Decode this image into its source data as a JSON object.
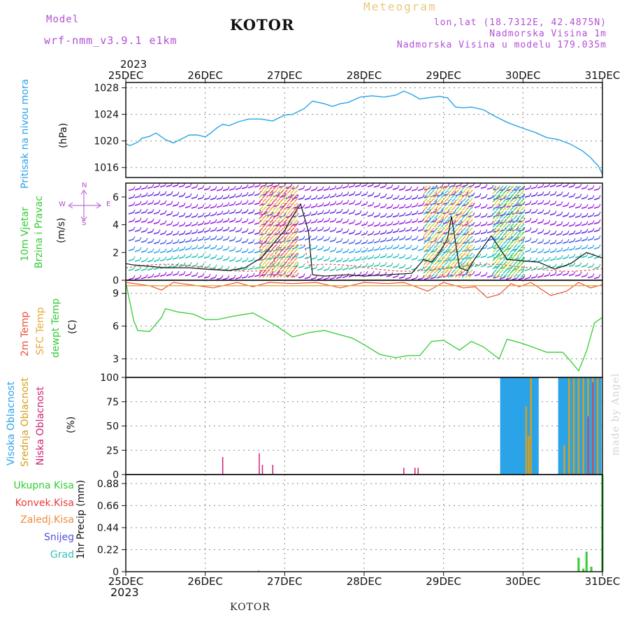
{
  "header": {
    "model_label": "Model",
    "model_name": "wrf-nmm_v3.9.1  e1km",
    "title": "KOTOR",
    "meteogram_label": "Meteogram",
    "lonlat": "lon,lat (18.7312E, 42.4875N)",
    "elevation": "Nadmorska Visina 1m",
    "model_elevation": "Nadmorska Visina u modelu 179.035m",
    "year": "2023",
    "watermark": "made by Angel",
    "footer_station": "KOTOR"
  },
  "colors": {
    "pressure": "#2aa3e8",
    "wind_black": "#111111",
    "gust_red": "#e05050",
    "temp2m": "#e8533a",
    "sfc_temp": "#e8a83a",
    "dewpoint": "#33cc33",
    "high_cloud": "#2aa3e8",
    "mid_cloud": "#d4a020",
    "low_cloud": "#cc2277",
    "precip": "#33cc33",
    "purple_text": "#b24fd6"
  },
  "axes": {
    "x_ticks": [
      "25DEC",
      "26DEC",
      "27DEC",
      "28DEC",
      "29DEC",
      "30DEC",
      "31DEC"
    ]
  },
  "panels": {
    "pressure": {
      "label": "Pritisak na nivou mora",
      "unit": "(hPa)",
      "ticks": [
        "1016",
        "1020",
        "1024",
        "1028"
      ]
    },
    "wind": {
      "label1": "10m Vjetar",
      "label2": "Brzina i Pravac",
      "unit": "(m/s)",
      "ticks": [
        "0",
        "2",
        "4",
        "6"
      ],
      "compass": {
        "n": "N",
        "s": "S",
        "w": "W",
        "e": "E"
      }
    },
    "temperature": {
      "label1": "2m Temp",
      "label2": "SFC Temp",
      "label3": "dewpt Temp",
      "unit": "(C)",
      "ticks": [
        "3",
        "6",
        "9"
      ]
    },
    "clouds": {
      "label1": "Visoka Oblacnost",
      "label2": "Srednja Oblacnost",
      "label3": "Niska Oblacnost",
      "unit": "(%)",
      "ticks": [
        "0",
        "25",
        "50",
        "75",
        "100"
      ]
    },
    "precip": {
      "legend": [
        "Ukupna Kisa",
        "Konvek.Kisa",
        "Zaledj.Kisa",
        "Snijeg",
        "Grad"
      ],
      "legend_colors": [
        "#33cc33",
        "#e83a3a",
        "#f08a3a",
        "#5050e0",
        "#33c0c0"
      ],
      "unit": "1hr Precip (mm)",
      "ticks": [
        "0",
        "0.22",
        "0.44",
        "0.66",
        "0.88"
      ]
    }
  },
  "chart_data": [
    {
      "type": "line",
      "title": "Pritisak na nivou mora",
      "ylabel": "(hPa)",
      "xlim": [
        0,
        6
      ],
      "ylim": [
        1014.5,
        1028.8
      ],
      "series": [
        {
          "x": [
            0,
            0.05,
            0.15,
            0.2,
            0.3,
            0.38,
            0.5,
            0.6,
            0.7,
            0.8,
            0.9,
            1.0,
            1.08,
            1.15,
            1.22,
            1.3,
            1.42,
            1.55,
            1.7,
            1.85,
            2.0,
            2.1,
            2.25,
            2.35,
            2.5,
            2.6,
            2.7,
            2.8,
            2.95,
            3.1,
            3.25,
            3.4,
            3.5,
            3.6,
            3.7,
            3.8,
            3.95,
            4.05,
            4.15,
            4.25,
            4.35,
            4.5,
            4.65,
            4.8,
            5.0,
            5.15,
            5.3,
            5.45,
            5.6,
            5.75,
            5.85,
            5.95,
            6.0
          ],
          "values": [
            1019.6,
            1019.3,
            1019.8,
            1020.4,
            1020.7,
            1021.2,
            1020.2,
            1019.7,
            1020.3,
            1020.9,
            1020.9,
            1020.6,
            1021.3,
            1022.0,
            1022.5,
            1022.3,
            1022.9,
            1023.3,
            1023.3,
            1023.0,
            1023.9,
            1024.0,
            1024.9,
            1026.0,
            1025.6,
            1025.2,
            1025.6,
            1025.8,
            1026.6,
            1026.8,
            1026.6,
            1026.9,
            1027.5,
            1027.0,
            1026.3,
            1026.5,
            1026.7,
            1026.5,
            1025.1,
            1025.0,
            1025.1,
            1024.7,
            1023.7,
            1022.8,
            1021.9,
            1021.3,
            1020.5,
            1020.2,
            1019.5,
            1018.5,
            1017.5,
            1016.2,
            1015.0
          ]
        }
      ]
    },
    {
      "type": "line",
      "title": "10m Vjetar Brzina i Pravac",
      "ylabel": "(m/s)",
      "xlim": [
        0,
        6
      ],
      "ylim": [
        0,
        7
      ],
      "series": [
        {
          "x": [
            0,
            0.1,
            0.3,
            0.5,
            0.8,
            1.0,
            1.3,
            1.5,
            1.7,
            1.85,
            2.0,
            2.1,
            2.2,
            2.3,
            2.35,
            2.5,
            2.8,
            3.0,
            3.3,
            3.6,
            3.75,
            3.85,
            3.95,
            4.05,
            4.1,
            4.2,
            4.3,
            4.4,
            4.5,
            4.6,
            4.8,
            5.0,
            5.2,
            5.4,
            5.6,
            5.8,
            6.0
          ],
          "values": [
            1.2,
            1.1,
            1.0,
            0.9,
            0.9,
            0.8,
            0.7,
            0.9,
            1.6,
            2.6,
            3.6,
            4.6,
            5.5,
            3.5,
            0.4,
            0.3,
            0.4,
            0.3,
            0.4,
            0.5,
            1.5,
            1.3,
            2.0,
            3.0,
            4.6,
            0.9,
            0.7,
            1.6,
            2.4,
            3.2,
            1.5,
            1.4,
            1.3,
            0.8,
            1.2,
            2.0,
            1.6
          ]
        }
      ]
    },
    {
      "type": "line",
      "title": "2m Temp / SFC Temp / dewpt Temp",
      "ylabel": "(C)",
      "xlim": [
        0,
        6
      ],
      "ylim": [
        1.3,
        10.2
      ],
      "series": [
        {
          "name": "2m Temp",
          "x": [
            0,
            0.3,
            0.45,
            0.6,
            0.8,
            1.1,
            1.4,
            1.6,
            1.8,
            2.1,
            2.4,
            2.7,
            3.0,
            3.3,
            3.5,
            3.8,
            4.0,
            4.25,
            4.4,
            4.55,
            4.7,
            4.85,
            4.95,
            5.1,
            5.35,
            5.55,
            5.7,
            5.85,
            6.0
          ],
          "values": [
            10.0,
            9.7,
            9.3,
            10.0,
            9.8,
            9.5,
            10.0,
            9.6,
            10.0,
            9.9,
            10.0,
            9.5,
            10.0,
            9.9,
            10.0,
            9.2,
            10.0,
            9.5,
            9.6,
            8.6,
            8.9,
            9.9,
            9.6,
            10.0,
            8.8,
            9.2,
            10.0,
            9.5,
            9.8
          ]
        },
        {
          "name": "SFC Temp",
          "x": [
            0,
            6
          ],
          "values": [
            9.7,
            9.7
          ]
        },
        {
          "name": "dewpt Temp",
          "x": [
            0,
            0.1,
            0.15,
            0.3,
            0.45,
            0.5,
            0.65,
            0.85,
            1.0,
            1.15,
            1.35,
            1.6,
            1.9,
            2.1,
            2.3,
            2.5,
            2.7,
            2.85,
            3.0,
            3.2,
            3.4,
            3.55,
            3.7,
            3.85,
            4.0,
            4.2,
            4.35,
            4.5,
            4.7,
            4.8,
            5.0,
            5.3,
            5.5,
            5.6,
            5.7,
            5.8,
            5.9,
            6.0
          ],
          "values": [
            10.0,
            6.5,
            5.6,
            5.5,
            6.8,
            7.6,
            7.3,
            7.1,
            6.6,
            6.6,
            6.9,
            7.2,
            6.0,
            5.0,
            5.4,
            5.6,
            5.2,
            4.9,
            4.3,
            3.4,
            3.1,
            3.3,
            3.3,
            4.6,
            4.7,
            3.8,
            4.6,
            4.1,
            3.0,
            4.8,
            4.4,
            3.6,
            3.6,
            2.8,
            1.9,
            3.7,
            6.3,
            6.8
          ]
        }
      ]
    },
    {
      "type": "bar",
      "title": "Visoka / Srednja / Niska Oblacnost",
      "ylabel": "(%)",
      "xlim": [
        0,
        6
      ],
      "ylim": [
        0,
        100
      ],
      "series": [
        {
          "name": "Visoka Oblacnost",
          "x": [
            4.73,
            4.76,
            4.79,
            4.82,
            4.85,
            4.88,
            4.91,
            4.94,
            4.97,
            5.0,
            5.03,
            5.06,
            5.09,
            5.12,
            5.15,
            5.18,
            5.46,
            5.49,
            5.52,
            5.55,
            5.58,
            5.61,
            5.64,
            5.67,
            5.7,
            5.73,
            5.76,
            5.79,
            5.82,
            5.85,
            5.88,
            5.91,
            5.94,
            5.97
          ],
          "values": [
            100,
            100,
            100,
            100,
            100,
            100,
            100,
            100,
            100,
            100,
            100,
            100,
            100,
            100,
            100,
            100,
            100,
            100,
            100,
            100,
            100,
            100,
            100,
            100,
            100,
            100,
            100,
            100,
            100,
            100,
            100,
            100,
            100,
            100
          ]
        },
        {
          "name": "Srednja Oblacnost",
          "x": [
            5.04,
            5.07,
            5.1,
            5.52,
            5.58,
            5.64,
            5.7,
            5.76,
            5.82,
            5.88,
            5.94
          ],
          "values": [
            70,
            40,
            100,
            30,
            100,
            100,
            100,
            100,
            100,
            100,
            100
          ]
        },
        {
          "name": "Niska Oblacnost",
          "x": [
            1.22,
            1.68,
            1.72,
            1.85,
            3.5,
            3.64,
            3.68,
            5.82,
            5.88
          ],
          "values": [
            18,
            22,
            10,
            10,
            7,
            7,
            7,
            60,
            95
          ]
        }
      ]
    },
    {
      "type": "bar",
      "title": "1hr Precip",
      "ylabel": "1hr Precip (mm)",
      "xlim": [
        0,
        6
      ],
      "ylim": [
        0,
        0.97
      ],
      "series": [
        {
          "name": "Ukupna Kisa",
          "x": [
            1.67,
            5.7,
            5.76,
            5.8,
            5.86,
            6.0
          ],
          "values": [
            0.01,
            0.14,
            0.03,
            0.2,
            0.05,
            0.97
          ]
        }
      ]
    }
  ]
}
